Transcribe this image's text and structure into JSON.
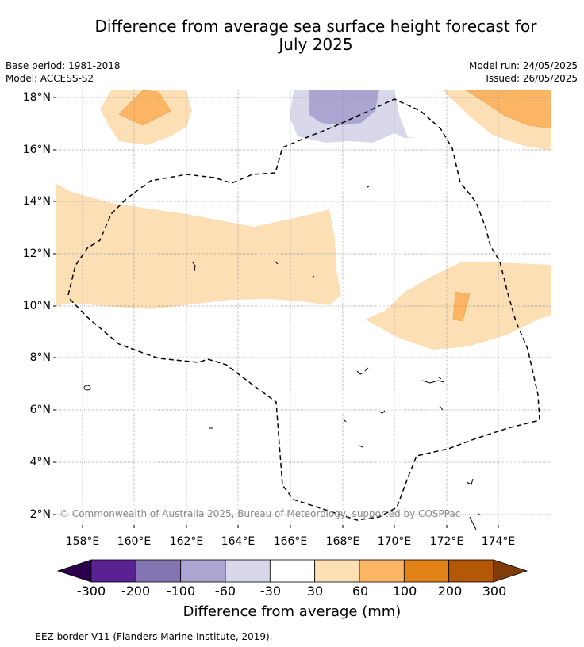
{
  "header": {
    "title_line1": "Difference from average sea surface height forecast for",
    "title_line2": "July 2025",
    "base_period": "Base period: 1981-2018",
    "model": "Model: ACCESS-S2",
    "model_run": "Model run: 24/05/2025",
    "issued": "Issued: 26/05/2025"
  },
  "map": {
    "lat_labels": [
      "18°N",
      "16°N",
      "14°N",
      "12°N",
      "10°N",
      "8°N",
      "6°N",
      "4°N",
      "2°N"
    ],
    "lon_labels": [
      "158°E",
      "160°E",
      "162°E",
      "164°E",
      "166°E",
      "168°E",
      "170°E",
      "172°E",
      "174°E"
    ],
    "copyright": "© Commonwealth of Australia 2025, Bureau of Meteorology, supported by COSPPac",
    "colors": {
      "orange_30_60": "#fddfb5",
      "orange_60_100": "#fbb564",
      "purple_minus30_minus60": "#d9d8eb",
      "purple_minus60_minus100": "#aca5d1",
      "eez_border": "#000000"
    }
  },
  "colorbar": {
    "ticks": [
      "-300",
      "-200",
      "-100",
      "-60",
      "-30",
      "30",
      "60",
      "100",
      "200",
      "300"
    ],
    "colors": [
      "#5a2190",
      "#8474b3",
      "#aca5d1",
      "#d9d8eb",
      "#ffffff",
      "#fddfb5",
      "#fbb564",
      "#e38317",
      "#b35806"
    ],
    "under_color": "#2d004b",
    "over_color": "#7f3b08",
    "label": "Difference from average (mm)"
  },
  "footnote": "--  --  -- EEZ border V11 (Flanders Marine Institute, 2019)."
}
